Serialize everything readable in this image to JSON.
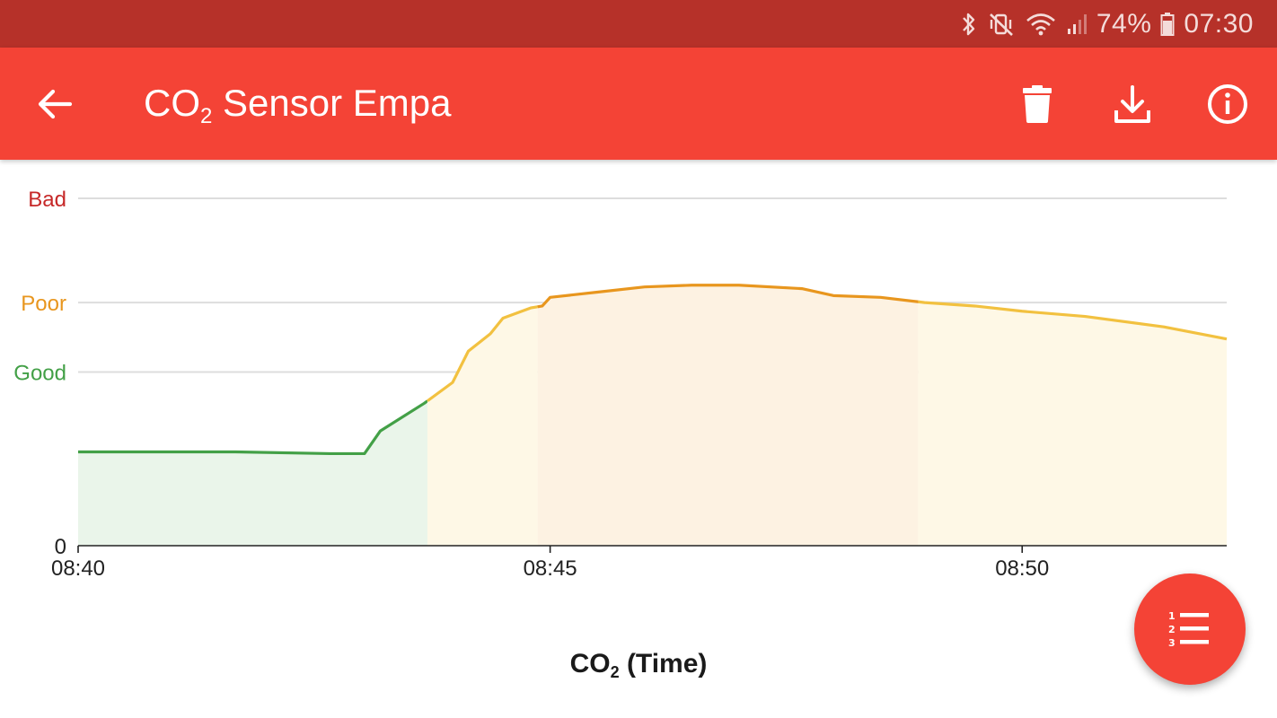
{
  "status_bar": {
    "battery_percent": "74%",
    "time": "07:30",
    "icons": [
      "bluetooth-icon",
      "vibrate-mute-icon",
      "wifi-icon",
      "signal-icon",
      "battery-icon"
    ]
  },
  "app_bar": {
    "title_prefix": "CO",
    "title_sub": "2",
    "title_suffix": " Sensor Empa",
    "icons": [
      "back-arrow-icon",
      "delete-icon",
      "download-icon",
      "info-icon"
    ]
  },
  "chart": {
    "title_prefix": "CO",
    "title_sub": "2",
    "title_suffix": " (Time)"
  },
  "fab": {
    "icon": "numbered-list-icon"
  },
  "colors": {
    "status_bar": "#b63129",
    "app_bar": "#f44336",
    "good": "#43a047",
    "moderate": "#f2c140",
    "poor": "#e8961e",
    "bad": "#c62828"
  },
  "chart_data": {
    "type": "area",
    "x_unit": "time",
    "xlim": [
      "08:40",
      "08:52:10"
    ],
    "ylim": [
      0,
      1.0
    ],
    "x_ticks": [
      "08:40",
      "08:45",
      "08:50"
    ],
    "y_levels": [
      {
        "label": "0",
        "value": 0,
        "color": "#222222"
      },
      {
        "label": "Good",
        "value": 0.5,
        "color": "#43a047"
      },
      {
        "label": "Poor",
        "value": 0.7,
        "color": "#e8961e"
      },
      {
        "label": "Bad",
        "value": 1.0,
        "color": "#c62828"
      }
    ],
    "grid": true,
    "points": [
      [
        "08:40:00",
        0.27
      ],
      [
        "08:40:40",
        0.27
      ],
      [
        "08:41:40",
        0.27
      ],
      [
        "08:42:40",
        0.265
      ],
      [
        "08:43:02",
        0.265
      ],
      [
        "08:43:12",
        0.33
      ],
      [
        "08:43:40",
        0.41
      ],
      [
        "08:43:58",
        0.47
      ],
      [
        "08:44:08",
        0.56
      ],
      [
        "08:44:22",
        0.61
      ],
      [
        "08:44:30",
        0.655
      ],
      [
        "08:44:48",
        0.685
      ],
      [
        "08:44:55",
        0.69
      ],
      [
        "08:45:00",
        0.715
      ],
      [
        "08:45:30",
        0.73
      ],
      [
        "08:46:00",
        0.745
      ],
      [
        "08:46:30",
        0.75
      ],
      [
        "08:47:00",
        0.75
      ],
      [
        "08:47:40",
        0.74
      ],
      [
        "08:48:00",
        0.72
      ],
      [
        "08:48:30",
        0.715
      ],
      [
        "08:48:58",
        0.7
      ],
      [
        "08:49:30",
        0.69
      ],
      [
        "08:50:00",
        0.675
      ],
      [
        "08:50:40",
        0.66
      ],
      [
        "08:51:30",
        0.63
      ],
      [
        "08:52:10",
        0.595
      ]
    ],
    "bands": [
      {
        "from": "08:40:00",
        "to": "08:43:42",
        "level": "good"
      },
      {
        "from": "08:43:42",
        "to": "08:44:52",
        "level": "moderate"
      },
      {
        "from": "08:44:52",
        "to": "08:48:54",
        "level": "poor"
      },
      {
        "from": "08:48:54",
        "to": "08:52:10",
        "level": "moderate"
      }
    ]
  }
}
